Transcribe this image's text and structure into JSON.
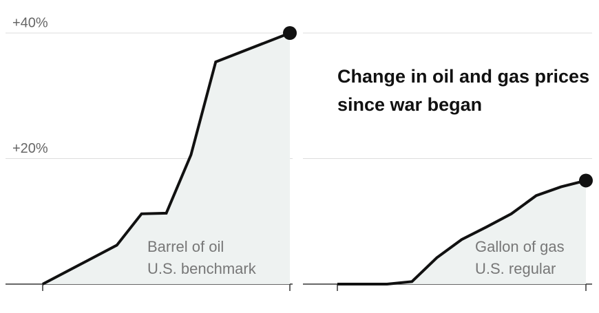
{
  "title": "Change in oil and gas prices since war began",
  "chart_data": [
    {
      "type": "line",
      "area": true,
      "x": [
        0,
        3,
        4,
        5,
        6,
        7,
        10
      ],
      "values": [
        0,
        6.2,
        11.2,
        11.3,
        20.6,
        35.4,
        40
      ],
      "color": "#111111",
      "fill": "#eef2f1",
      "xlim": [
        0,
        10
      ],
      "xticks": [
        0,
        10
      ],
      "ylim": [
        0,
        42
      ],
      "yticks": [
        {
          "value": 20,
          "label": "+20%"
        },
        {
          "value": 40,
          "label": "+40%"
        }
      ],
      "grid": true,
      "annotations": [
        "Barrel of oil",
        "U.S. benchmark"
      ]
    },
    {
      "type": "line",
      "area": true,
      "x": [
        0,
        2,
        3,
        4,
        5,
        6,
        7,
        8,
        9,
        10
      ],
      "values": [
        0,
        0,
        0.4,
        4.2,
        7.1,
        9.1,
        11.2,
        14.1,
        15.5,
        16.5
      ],
      "color": "#111111",
      "fill": "#eef2f1",
      "xlim": [
        0,
        10
      ],
      "xticks": [
        0,
        10
      ],
      "ylim": [
        0,
        42
      ],
      "yticks": [
        20,
        40
      ],
      "grid": true,
      "annotations": [
        "Gallon of gas",
        "U.S. regular"
      ]
    }
  ]
}
